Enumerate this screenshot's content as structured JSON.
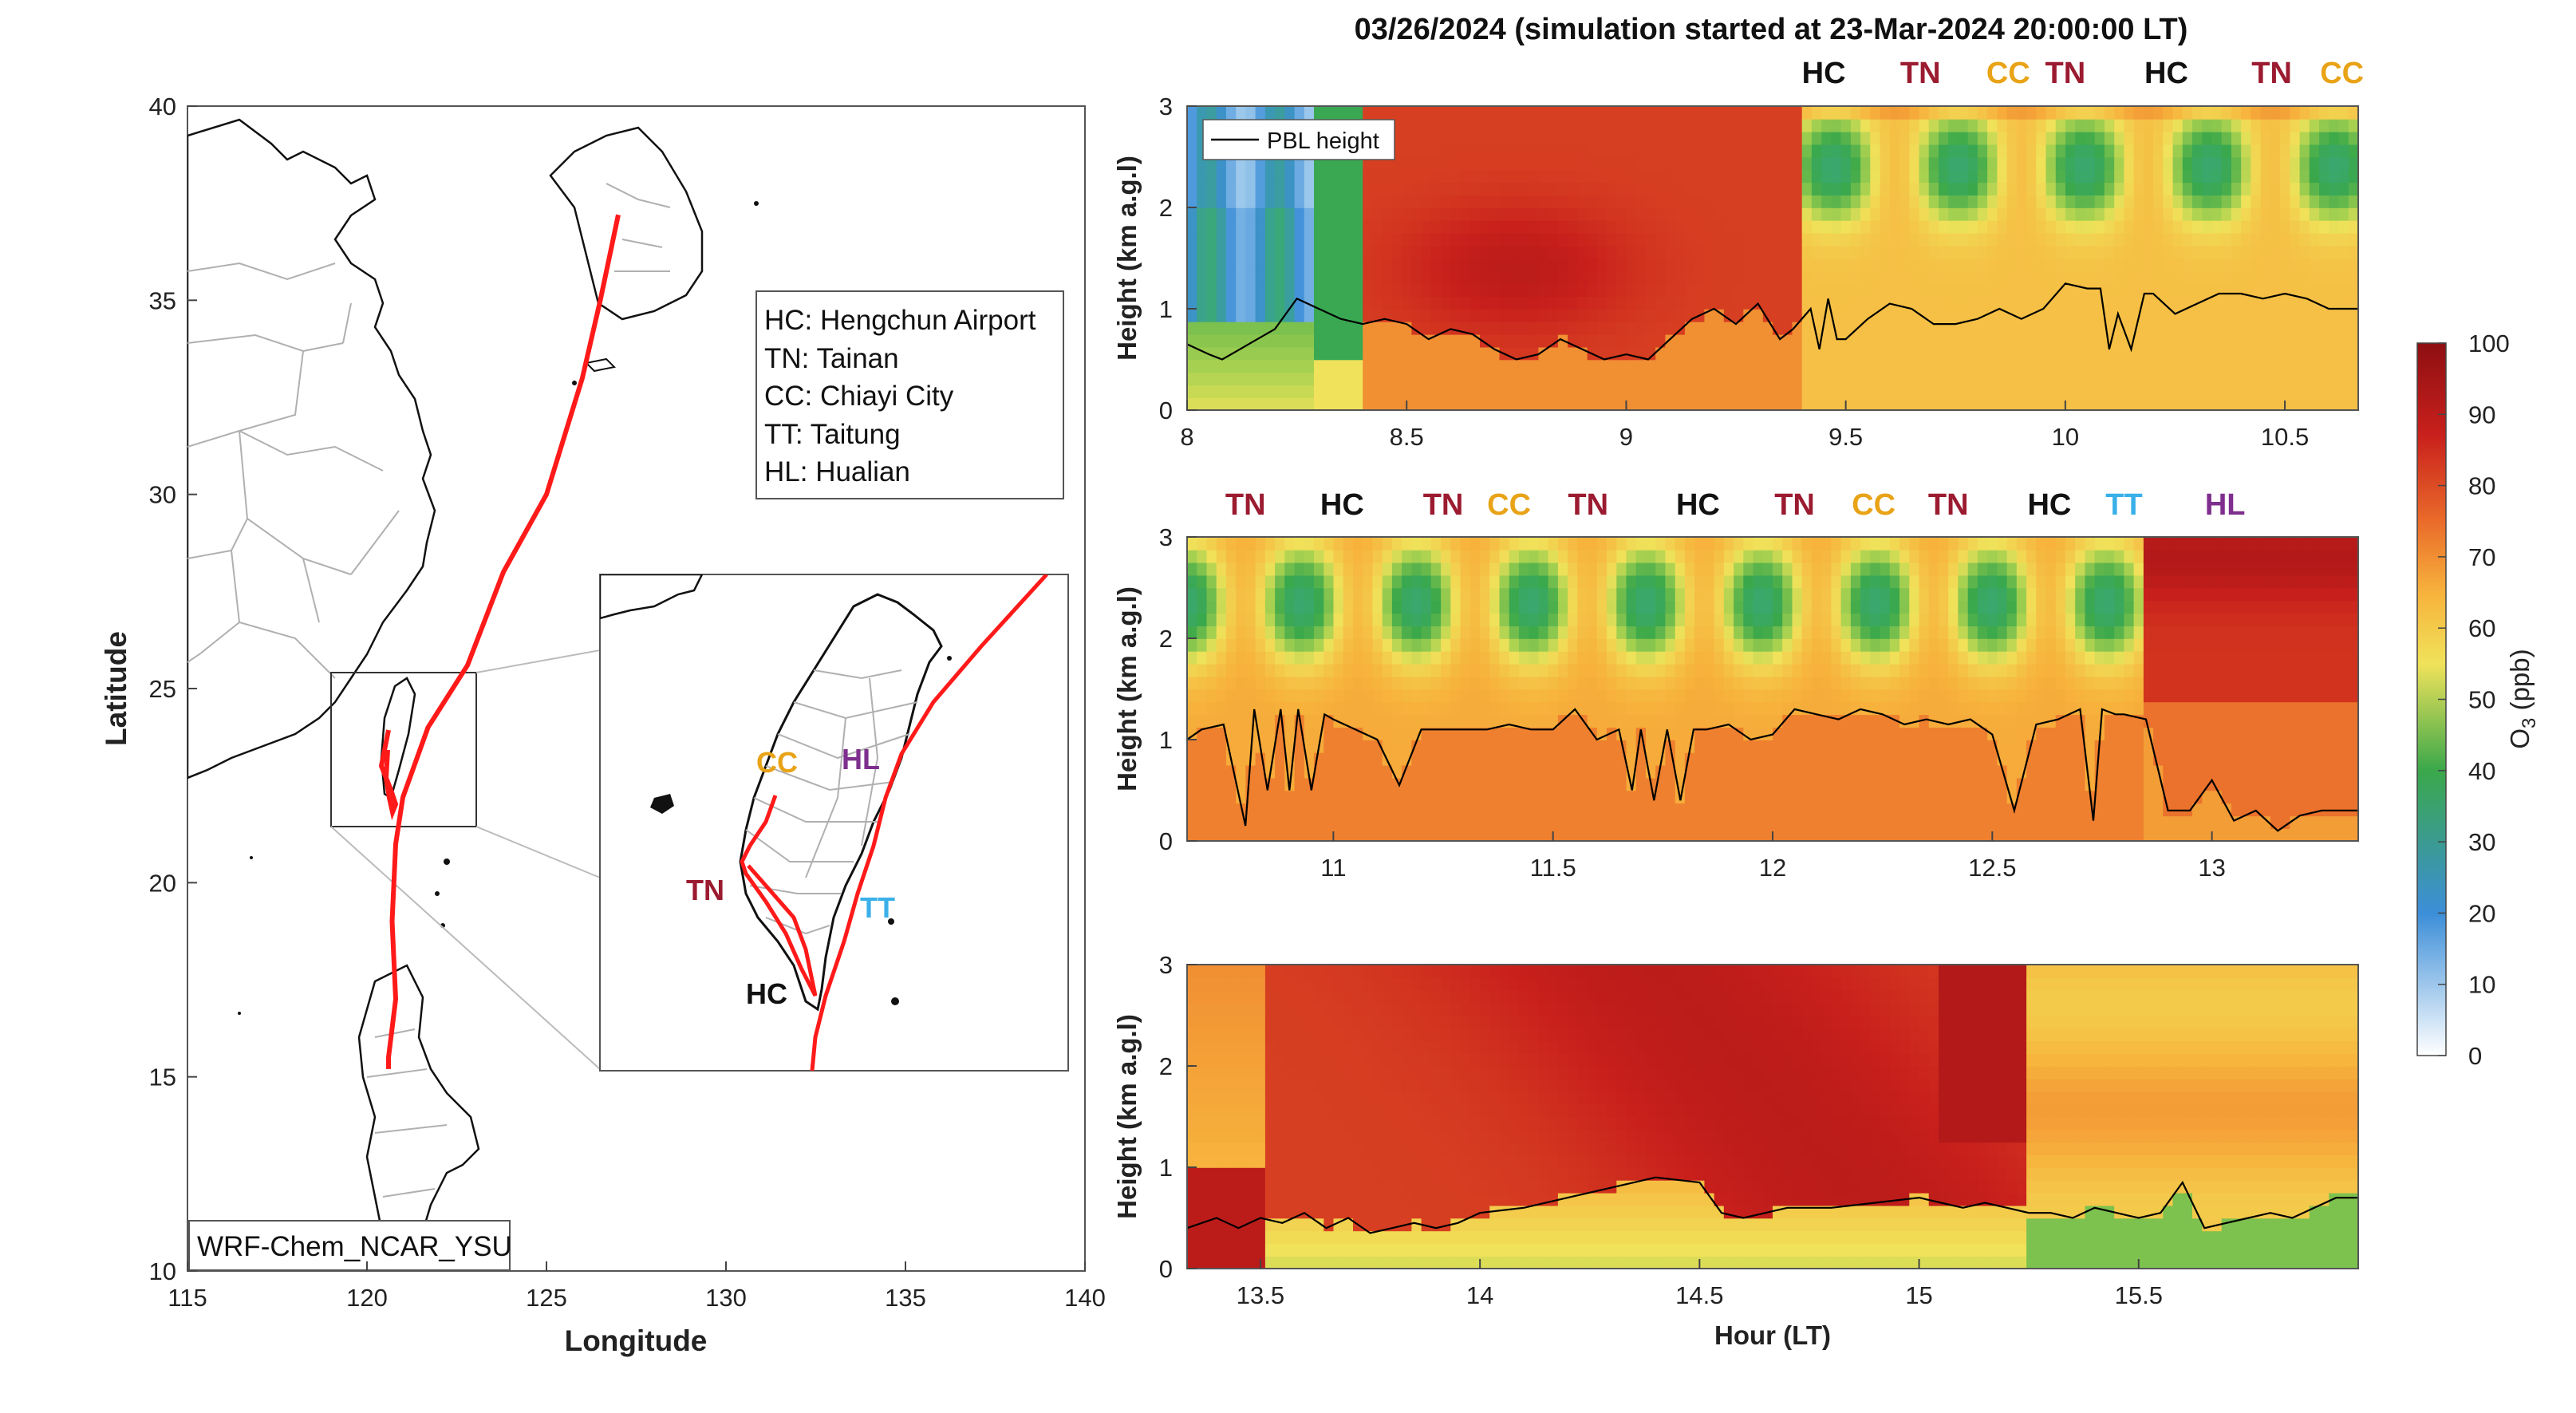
{
  "title": "03/26/2024 (simulation started at 23-Mar-2024 20:00:00 LT)",
  "colors": {
    "HC": "#111111",
    "TN": "#9b1b30",
    "CC": "#e8a317",
    "TT": "#3ab0e8",
    "HL": "#7e2f8e",
    "track": "#ff1a1a",
    "pbl": "#000000"
  },
  "map": {
    "xlabel": "Longitude",
    "ylabel": "Latitude",
    "xlim": [
      115,
      140
    ],
    "ylim": [
      10,
      40
    ],
    "xticks": [
      "115",
      "120",
      "125",
      "130",
      "135",
      "140"
    ],
    "yticks": [
      "10",
      "15",
      "20",
      "25",
      "30",
      "35",
      "40"
    ],
    "model_label": "WRF-Chem_NCAR_YSU",
    "legend": [
      "HC: Hengchun Airport",
      "TN: Tainan",
      "CC: Chiayi City",
      "TT: Taitung",
      "HL: Hualian"
    ],
    "inset_sites": [
      {
        "code": "CC",
        "color_key": "CC"
      },
      {
        "code": "HL",
        "color_key": "HL"
      },
      {
        "code": "TN",
        "color_key": "TN"
      },
      {
        "code": "TT",
        "color_key": "TT"
      },
      {
        "code": "HC",
        "color_key": "HC"
      }
    ],
    "track_lonlat": [
      [
        127.0,
        37.2
      ],
      [
        126.5,
        35.0
      ],
      [
        126.0,
        33.0
      ],
      [
        125.0,
        30.0
      ],
      [
        123.8,
        28.0
      ],
      [
        122.8,
        25.6
      ],
      [
        121.7,
        24.0
      ],
      [
        121.0,
        22.2
      ],
      [
        120.8,
        21.0
      ],
      [
        120.7,
        19.0
      ],
      [
        120.8,
        17.0
      ],
      [
        120.6,
        15.5
      ],
      [
        120.6,
        15.2
      ]
    ]
  },
  "chart_data": [
    {
      "type": "heatmap",
      "xlabel": "",
      "ylabel": "Height (km a.g.l)",
      "xlim": [
        8,
        10.667
      ],
      "ylim": [
        0,
        3
      ],
      "xticks": [
        "8",
        "8.5",
        "9",
        "9.5",
        "10",
        "10.5"
      ],
      "yticks": [
        "0",
        "1",
        "2",
        "3"
      ],
      "legend": "PBL height",
      "sites": [
        {
          "code": "HC",
          "x": 9.45
        },
        {
          "code": "TN",
          "x": 9.67
        },
        {
          "code": "CC",
          "x": 9.87
        },
        {
          "code": "TN",
          "x": 10.0
        },
        {
          "code": "HC",
          "x": 10.23
        },
        {
          "code": "TN",
          "x": 10.47
        },
        {
          "code": "CC",
          "x": 10.63
        }
      ],
      "pbl": {
        "x": [
          8.0,
          8.05,
          8.08,
          8.12,
          8.16,
          8.2,
          8.25,
          8.3,
          8.35,
          8.4,
          8.45,
          8.5,
          8.55,
          8.6,
          8.65,
          8.7,
          8.75,
          8.8,
          8.85,
          8.9,
          8.95,
          9.0,
          9.05,
          9.1,
          9.15,
          9.2,
          9.25,
          9.3,
          9.35,
          9.38,
          9.42,
          9.44,
          9.46,
          9.48,
          9.5,
          9.55,
          9.6,
          9.65,
          9.7,
          9.75,
          9.8,
          9.85,
          9.9,
          9.95,
          10.0,
          10.05,
          10.08,
          10.1,
          10.12,
          10.15,
          10.18,
          10.2,
          10.25,
          10.3,
          10.35,
          10.4,
          10.45,
          10.5,
          10.55,
          10.6,
          10.667
        ],
        "y": [
          0.65,
          0.55,
          0.5,
          0.6,
          0.7,
          0.8,
          1.1,
          1.0,
          0.9,
          0.85,
          0.9,
          0.85,
          0.7,
          0.8,
          0.75,
          0.6,
          0.5,
          0.55,
          0.7,
          0.6,
          0.5,
          0.55,
          0.5,
          0.7,
          0.9,
          1.0,
          0.85,
          1.05,
          0.7,
          0.8,
          1.0,
          0.6,
          1.1,
          0.7,
          0.7,
          0.9,
          1.05,
          1.0,
          0.85,
          0.85,
          0.9,
          1.0,
          0.9,
          1.0,
          1.25,
          1.2,
          1.2,
          0.6,
          0.95,
          0.6,
          1.15,
          1.15,
          0.95,
          1.05,
          1.15,
          1.15,
          1.1,
          1.15,
          1.1,
          1.0,
          1.0
        ]
      },
      "colormap": "jet",
      "clim": [
        0,
        100
      ]
    },
    {
      "type": "heatmap",
      "xlabel": "",
      "ylabel": "Height (km a.g.l)",
      "xlim": [
        10.667,
        13.333
      ],
      "ylim": [
        0,
        3
      ],
      "xticks": [
        "11",
        "11.5",
        "12",
        "12.5",
        "13"
      ],
      "yticks": [
        "0",
        "1",
        "2",
        "3"
      ],
      "sites": [
        {
          "code": "TN",
          "x": 10.8
        },
        {
          "code": "HC",
          "x": 11.02
        },
        {
          "code": "TN",
          "x": 11.25
        },
        {
          "code": "CC",
          "x": 11.4
        },
        {
          "code": "TN",
          "x": 11.58
        },
        {
          "code": "HC",
          "x": 11.83
        },
        {
          "code": "TN",
          "x": 12.05
        },
        {
          "code": "CC",
          "x": 12.23
        },
        {
          "code": "TN",
          "x": 12.4
        },
        {
          "code": "HC",
          "x": 12.63
        },
        {
          "code": "TT",
          "x": 12.8
        },
        {
          "code": "HL",
          "x": 13.03
        }
      ],
      "pbl": {
        "x": [
          10.667,
          10.7,
          10.75,
          10.8,
          10.82,
          10.85,
          10.88,
          10.9,
          10.92,
          10.95,
          10.98,
          11.0,
          11.05,
          11.1,
          11.15,
          11.2,
          11.25,
          11.3,
          11.35,
          11.4,
          11.45,
          11.5,
          11.55,
          11.6,
          11.65,
          11.68,
          11.7,
          11.73,
          11.76,
          11.79,
          11.82,
          11.85,
          11.9,
          11.95,
          12.0,
          12.05,
          12.1,
          12.15,
          12.2,
          12.25,
          12.3,
          12.35,
          12.4,
          12.45,
          12.5,
          12.55,
          12.6,
          12.65,
          12.7,
          12.73,
          12.75,
          12.78,
          12.8,
          12.85,
          12.9,
          12.95,
          13.0,
          13.05,
          13.1,
          13.15,
          13.2,
          13.25,
          13.333
        ],
        "y": [
          1.0,
          1.1,
          1.15,
          0.15,
          1.3,
          0.5,
          1.3,
          0.5,
          1.3,
          0.5,
          1.25,
          1.2,
          1.1,
          1.0,
          0.55,
          1.1,
          1.1,
          1.1,
          1.1,
          1.15,
          1.1,
          1.1,
          1.3,
          1.0,
          1.1,
          0.5,
          1.1,
          0.4,
          1.1,
          0.4,
          1.1,
          1.1,
          1.15,
          1.0,
          1.05,
          1.3,
          1.25,
          1.2,
          1.3,
          1.25,
          1.15,
          1.2,
          1.15,
          1.2,
          1.05,
          0.3,
          1.15,
          1.2,
          1.3,
          0.2,
          1.3,
          1.25,
          1.25,
          1.2,
          0.3,
          0.3,
          0.6,
          0.2,
          0.3,
          0.1,
          0.25,
          0.3,
          0.3
        ]
      },
      "colormap": "jet",
      "clim": [
        0,
        100
      ]
    },
    {
      "type": "heatmap",
      "xlabel": "Hour (LT)",
      "ylabel": "Height (km a.g.l)",
      "xlim": [
        13.333,
        16.0
      ],
      "ylim": [
        0,
        3
      ],
      "xticks": [
        "13.5",
        "14",
        "14.5",
        "15",
        "15.5"
      ],
      "yticks": [
        "0",
        "1",
        "2",
        "3"
      ],
      "sites": [],
      "pbl": {
        "x": [
          13.333,
          13.4,
          13.45,
          13.5,
          13.55,
          13.6,
          13.65,
          13.7,
          13.75,
          13.8,
          13.85,
          13.9,
          13.95,
          14.0,
          14.1,
          14.2,
          14.3,
          14.4,
          14.5,
          14.55,
          14.6,
          14.65,
          14.7,
          14.8,
          14.9,
          15.0,
          15.05,
          15.1,
          15.15,
          15.2,
          15.25,
          15.3,
          15.35,
          15.4,
          15.45,
          15.5,
          15.55,
          15.6,
          15.65,
          15.7,
          15.75,
          15.8,
          15.85,
          15.9,
          15.95,
          16.0
        ],
        "y": [
          0.4,
          0.5,
          0.4,
          0.5,
          0.45,
          0.55,
          0.4,
          0.5,
          0.35,
          0.4,
          0.45,
          0.4,
          0.45,
          0.55,
          0.6,
          0.7,
          0.8,
          0.9,
          0.85,
          0.55,
          0.5,
          0.55,
          0.6,
          0.6,
          0.65,
          0.7,
          0.65,
          0.6,
          0.65,
          0.6,
          0.55,
          0.55,
          0.5,
          0.6,
          0.55,
          0.5,
          0.55,
          0.85,
          0.4,
          0.45,
          0.5,
          0.55,
          0.5,
          0.6,
          0.7,
          0.7
        ]
      },
      "colormap": "jet",
      "clim": [
        0,
        100
      ]
    }
  ],
  "colorbar": {
    "label_main": "O",
    "label_sub": "3",
    "label_unit": " (ppb)",
    "ticks": [
      "0",
      "10",
      "20",
      "30",
      "40",
      "50",
      "60",
      "70",
      "80",
      "90",
      "100"
    ],
    "stops": [
      "#ffffff",
      "#3c8ed8",
      "#3aa84a",
      "#f0e25a",
      "#f7b23c",
      "#ea6b2a",
      "#c9201c",
      "#8e0f12"
    ]
  }
}
